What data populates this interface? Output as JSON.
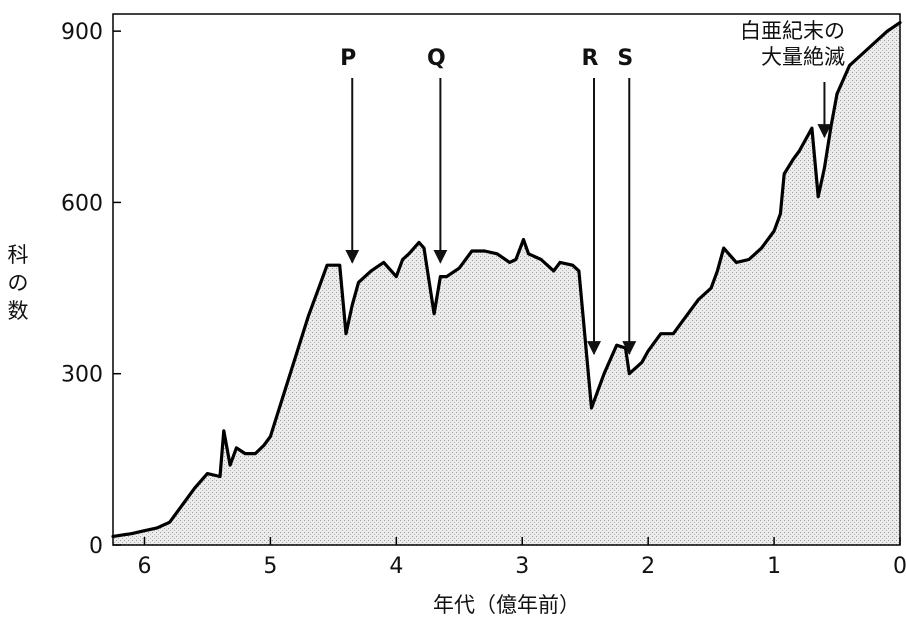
{
  "chart_data": {
    "type": "area",
    "xlabel": "年代（億年前）",
    "ylabel": "科の数",
    "xlim": [
      6.25,
      0
    ],
    "ylim": [
      0,
      930
    ],
    "x_ticks": [
      6,
      5,
      4,
      3,
      2,
      1,
      0
    ],
    "y_ticks": [
      0,
      300,
      600,
      900
    ],
    "grid": false,
    "fill": "stippled-gray",
    "series": [
      {
        "x": [
          6.25,
          6.1,
          6.0,
          5.9,
          5.8,
          5.7,
          5.6,
          5.5,
          5.4,
          5.37,
          5.32,
          5.27,
          5.2,
          5.12,
          5.05,
          5.0,
          4.9,
          4.8,
          4.7,
          4.6,
          4.55,
          4.45,
          4.4,
          4.35,
          4.3,
          4.2,
          4.1,
          4.0,
          3.95,
          3.9,
          3.82,
          3.78,
          3.7,
          3.65,
          3.6,
          3.5,
          3.4,
          3.3,
          3.2,
          3.1,
          3.05,
          2.99,
          2.95,
          2.85,
          2.75,
          2.7,
          2.6,
          2.55,
          2.45,
          2.4,
          2.35,
          2.3,
          2.25,
          2.18,
          2.15,
          2.05,
          2.0,
          1.9,
          1.8,
          1.7,
          1.6,
          1.5,
          1.45,
          1.4,
          1.3,
          1.2,
          1.1,
          1.0,
          0.95,
          0.92,
          0.85,
          0.8,
          0.7,
          0.65,
          0.6,
          0.55,
          0.5,
          0.4,
          0.3,
          0.2,
          0.1,
          0.0
        ],
        "y": [
          15,
          20,
          25,
          30,
          40,
          70,
          100,
          125,
          120,
          200,
          140,
          170,
          160,
          160,
          175,
          190,
          260,
          330,
          400,
          460,
          490,
          490,
          370,
          420,
          460,
          480,
          495,
          470,
          500,
          510,
          530,
          520,
          405,
          470,
          470,
          485,
          515,
          515,
          510,
          495,
          500,
          535,
          510,
          500,
          480,
          495,
          490,
          480,
          240,
          270,
          300,
          325,
          350,
          345,
          300,
          320,
          340,
          370,
          370,
          400,
          430,
          450,
          480,
          520,
          495,
          500,
          520,
          550,
          580,
          650,
          675,
          690,
          730,
          610,
          660,
          730,
          790,
          840,
          860,
          880,
          900,
          915
        ]
      }
    ],
    "markers": [
      {
        "label": "P",
        "x": 4.35,
        "y": 495
      },
      {
        "label": "Q",
        "x": 3.65,
        "y": 495
      },
      {
        "label": "R",
        "x": 2.43,
        "y": 335
      },
      {
        "label": "S",
        "x": 2.15,
        "y": 335
      }
    ],
    "annotations": [
      {
        "lines": [
          "白亜紀末の",
          "大量絶滅"
        ],
        "x": 0.6,
        "y": 715
      }
    ]
  }
}
